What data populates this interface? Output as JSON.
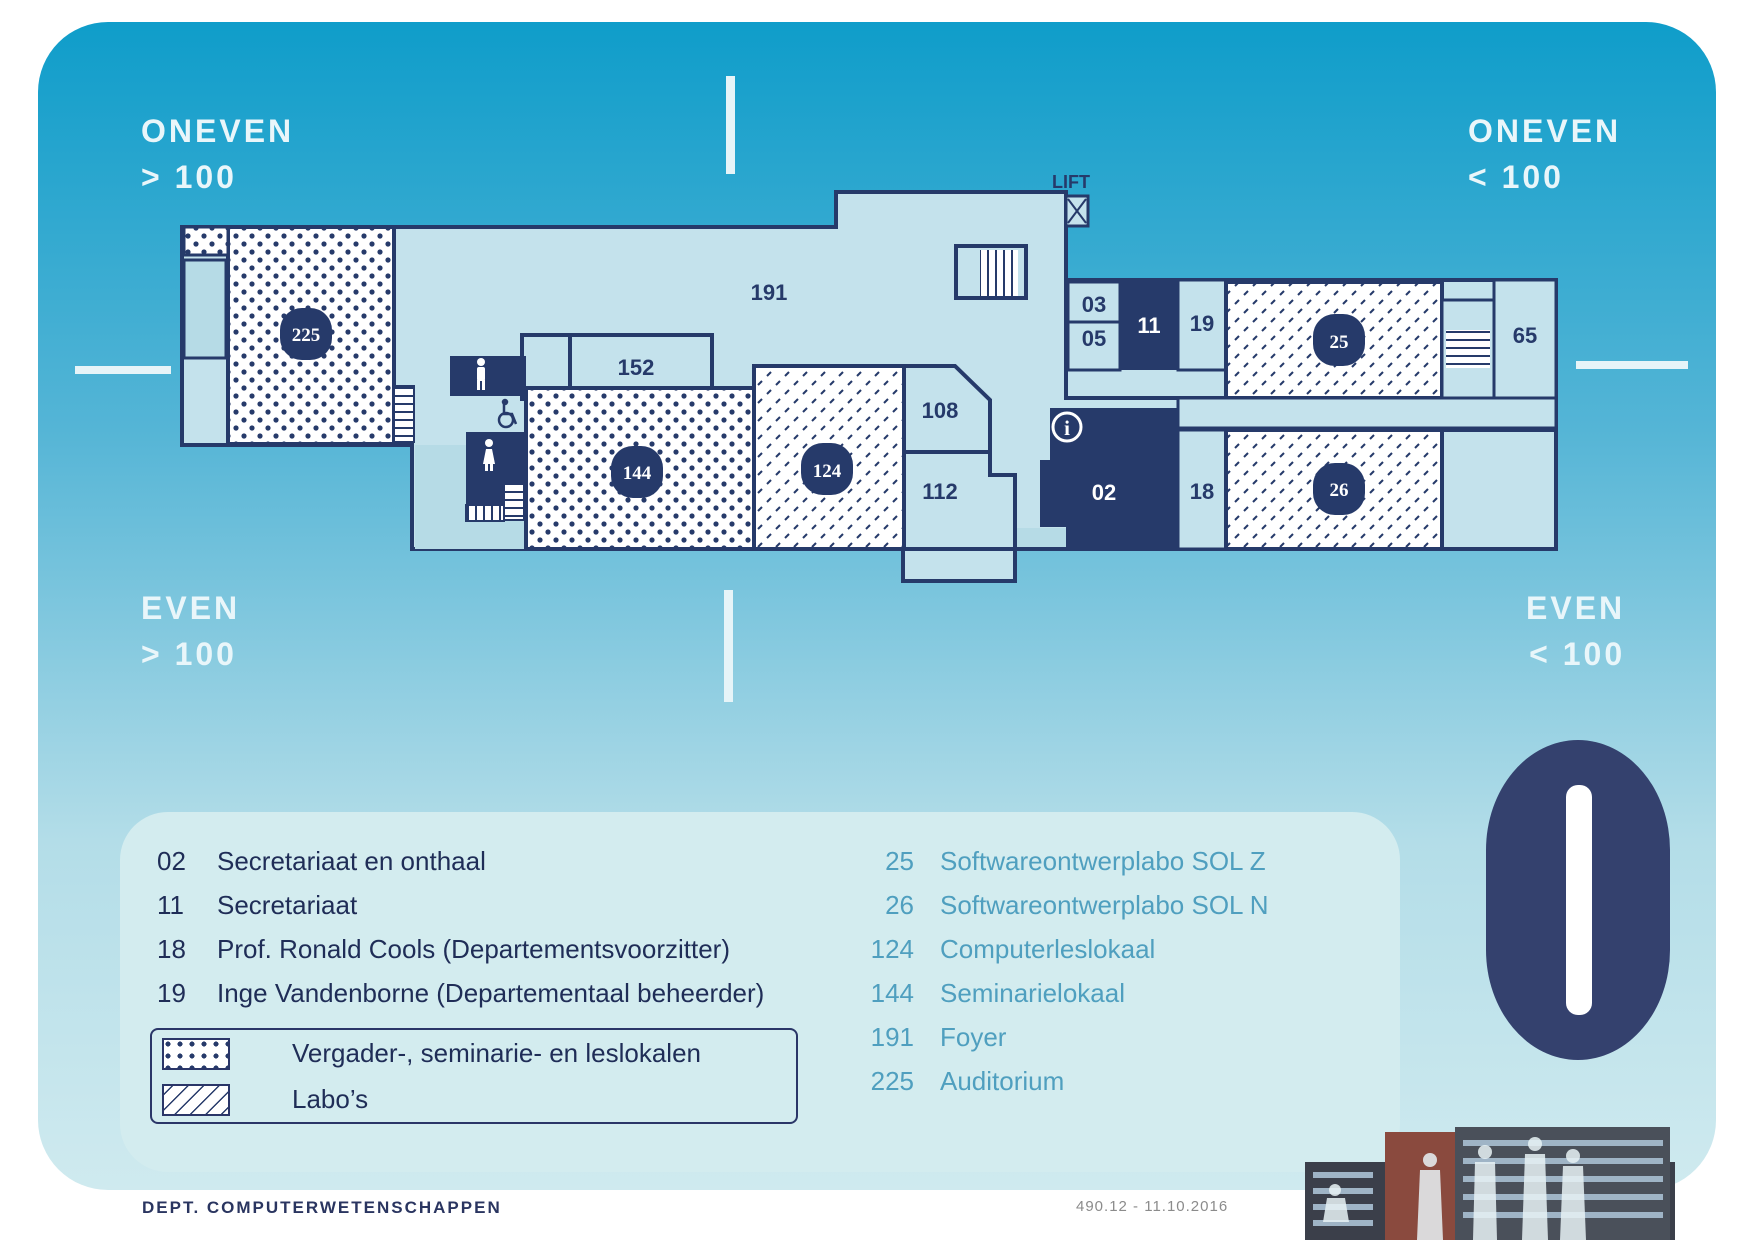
{
  "quadrants": {
    "top_left": {
      "line1": "ONEVEN",
      "line2": "> 100"
    },
    "top_right": {
      "line1": "ONEVEN",
      "line2": "< 100"
    },
    "bottom_left": {
      "line1": "EVEN",
      "line2": "> 100"
    },
    "bottom_right": {
      "line1": "EVEN",
      "line2": "< 100"
    }
  },
  "plan": {
    "lift_label": "LIFT",
    "rooms": {
      "r191": "191",
      "r225": "225",
      "r152": "152",
      "r144": "144",
      "r124": "124",
      "r108": "108",
      "r112": "112",
      "r02": "02",
      "r18": "18",
      "r26": "26",
      "r03": "03",
      "r05": "05",
      "r11": "11",
      "r19": "19",
      "r25": "25",
      "r65": "65"
    },
    "info_symbol": "i"
  },
  "legend": {
    "left": [
      {
        "num": "02",
        "text": "Secretariaat  en onthaal"
      },
      {
        "num": "11",
        "text": "Secretariaat"
      },
      {
        "num": "18",
        "text": "Prof. Ronald Cools (Departementsvoorzitter)"
      },
      {
        "num": "19",
        "text": "Inge Vandenborne (Departementaal beheerder)"
      }
    ],
    "key": {
      "meeting": "Vergader-, seminarie- en leslokalen",
      "labs": "Labo’s"
    },
    "right": [
      {
        "num": "25",
        "text": "Softwareontwerplabo SOL Z"
      },
      {
        "num": "26",
        "text": "Softwareontwerplabo SOL N"
      },
      {
        "num": "124",
        "text": "Computerleslokaal"
      },
      {
        "num": "144",
        "text": "Seminarielokaal"
      },
      {
        "num": "191",
        "text": "Foyer"
      },
      {
        "num": "225",
        "text": "Auditorium"
      }
    ]
  },
  "floor_number": "0",
  "footer": {
    "department": "DEPT. COMPUTERWETENSCHAPPEN",
    "code": "490.12 - 11.10.2016"
  },
  "colors": {
    "navy": "#263a6a",
    "room_fill": "#c4e2ec",
    "legend_right_text": "#4f9fbf"
  }
}
